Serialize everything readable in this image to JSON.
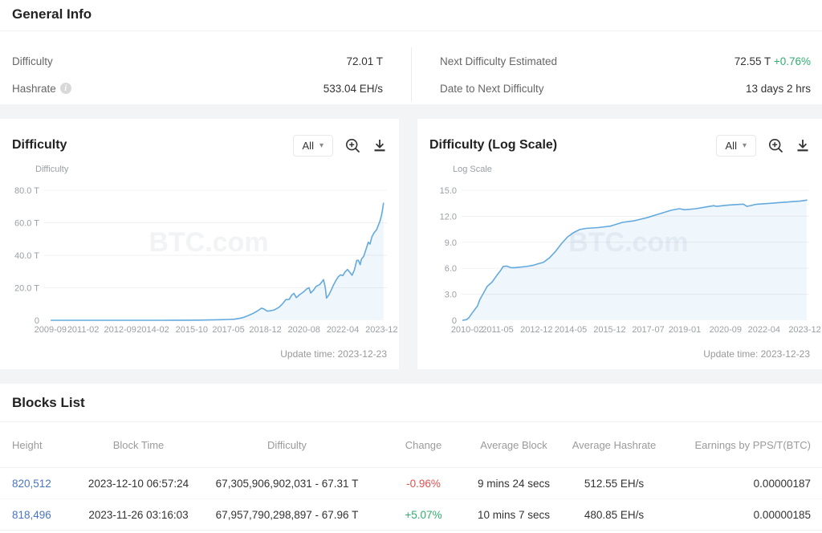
{
  "general_info": {
    "title": "General Info",
    "left_rows": [
      {
        "label": "Difficulty",
        "value": "72.01 T"
      },
      {
        "label": "Hashrate",
        "value": "533.04 EH/s",
        "has_info_icon": true
      }
    ],
    "right_rows": [
      {
        "label": "Next Difficulty Estimated",
        "value": "72.55 T",
        "change": "+0.76%"
      },
      {
        "label": "Date to Next Difficulty",
        "value": "13 days 2 hrs"
      }
    ]
  },
  "colors": {
    "accent_line": "#64aadd",
    "accent_fill": "rgba(100,170,221,0.10)",
    "positive": "#2fae6e",
    "negative": "#e25050",
    "link": "#4a74c4"
  },
  "chart_data": [
    {
      "type": "area",
      "title": "Difficulty",
      "ylabel": "Difficulty",
      "range_selected": "All",
      "update_time": "Update time: 2023-12-23",
      "watermark": "BTC.com",
      "legend": "none",
      "grid": "horizontal",
      "xlim": [
        2009.4,
        2024.15
      ],
      "ylim": [
        0,
        80
      ],
      "y_ticks": [
        {
          "v": 0,
          "label": "0"
        },
        {
          "v": 20,
          "label": "20.0 T"
        },
        {
          "v": 40,
          "label": "40.0 T"
        },
        {
          "v": 60,
          "label": "60.0 T"
        },
        {
          "v": 80,
          "label": "80.0 T"
        }
      ],
      "x_ticks": [
        {
          "v": 2009.67,
          "label": "2009-09"
        },
        {
          "v": 2011.08,
          "label": "2011-02"
        },
        {
          "v": 2012.67,
          "label": "2012-09"
        },
        {
          "v": 2014.08,
          "label": "2014-02"
        },
        {
          "v": 2015.75,
          "label": "2015-10"
        },
        {
          "v": 2017.33,
          "label": "2017-05"
        },
        {
          "v": 2018.92,
          "label": "2018-12"
        },
        {
          "v": 2020.58,
          "label": "2020-08"
        },
        {
          "v": 2022.25,
          "label": "2022-04"
        },
        {
          "v": 2023.92,
          "label": "2023-12"
        }
      ],
      "series": [
        {
          "name": "Difficulty (T)",
          "points": [
            [
              2009.7,
              1e-06
            ],
            [
              2011.0,
              2e-06
            ],
            [
              2012.5,
              3e-06
            ],
            [
              2013.0,
              1e-05
            ],
            [
              2013.5,
              2e-05
            ],
            [
              2014.0,
              0.0013
            ],
            [
              2014.5,
              0.008
            ],
            [
              2015.0,
              0.044
            ],
            [
              2015.5,
              0.048
            ],
            [
              2016.0,
              0.104
            ],
            [
              2016.5,
              0.199
            ],
            [
              2017.0,
              0.336
            ],
            [
              2017.3,
              0.5
            ],
            [
              2017.6,
              0.71
            ],
            [
              2017.9,
              1.45
            ],
            [
              2018.0,
              1.93
            ],
            [
              2018.2,
              3.01
            ],
            [
              2018.4,
              4.31
            ],
            [
              2018.6,
              5.95
            ],
            [
              2018.75,
              7.45
            ],
            [
              2018.85,
              7.0
            ],
            [
              2019.0,
              5.62
            ],
            [
              2019.1,
              5.8
            ],
            [
              2019.3,
              6.39
            ],
            [
              2019.5,
              7.93
            ],
            [
              2019.65,
              9.99
            ],
            [
              2019.8,
              12.76
            ],
            [
              2019.95,
              12.88
            ],
            [
              2020.05,
              15.47
            ],
            [
              2020.15,
              16.55
            ],
            [
              2020.25,
              13.91
            ],
            [
              2020.4,
              15.78
            ],
            [
              2020.55,
              17.35
            ],
            [
              2020.7,
              19.31
            ],
            [
              2020.8,
              19.99
            ],
            [
              2020.87,
              16.79
            ],
            [
              2021.0,
              18.67
            ],
            [
              2021.1,
              20.82
            ],
            [
              2021.25,
              21.87
            ],
            [
              2021.35,
              23.58
            ],
            [
              2021.42,
              25.05
            ],
            [
              2021.5,
              19.93
            ],
            [
              2021.55,
              13.67
            ],
            [
              2021.65,
              15.56
            ],
            [
              2021.75,
              18.42
            ],
            [
              2021.85,
              21.66
            ],
            [
              2021.95,
              24.37
            ],
            [
              2022.05,
              26.64
            ],
            [
              2022.15,
              27.97
            ],
            [
              2022.25,
              27.45
            ],
            [
              2022.35,
              29.79
            ],
            [
              2022.45,
              31.25
            ],
            [
              2022.55,
              29.57
            ],
            [
              2022.65,
              27.69
            ],
            [
              2022.75,
              30.98
            ],
            [
              2022.85,
              36.84
            ],
            [
              2022.92,
              36.95
            ],
            [
              2023.0,
              34.24
            ],
            [
              2023.05,
              37.59
            ],
            [
              2023.15,
              39.35
            ],
            [
              2023.25,
              43.55
            ],
            [
              2023.35,
              48.01
            ],
            [
              2023.42,
              46.84
            ],
            [
              2023.5,
              51.23
            ],
            [
              2023.6,
              53.91
            ],
            [
              2023.7,
              55.62
            ],
            [
              2023.75,
              57.32
            ],
            [
              2023.85,
              61.03
            ],
            [
              2023.92,
              64.68
            ],
            [
              2023.96,
              67.96
            ],
            [
              2024.0,
              72.01
            ]
          ]
        }
      ]
    },
    {
      "type": "area",
      "title": "Difficulty (Log Scale)",
      "ylabel": "Log Scale",
      "range_selected": "All",
      "update_time": "Update time: 2023-12-23",
      "watermark": "BTC.com",
      "legend": "none",
      "grid": "horizontal",
      "xlim": [
        2009.85,
        2024.1
      ],
      "ylim": [
        0,
        15
      ],
      "y_ticks": [
        {
          "v": 0,
          "label": "0"
        },
        {
          "v": 3,
          "label": "3.0"
        },
        {
          "v": 6,
          "label": "6.0"
        },
        {
          "v": 9,
          "label": "9.0"
        },
        {
          "v": 12,
          "label": "12.0"
        },
        {
          "v": 15,
          "label": "15.0"
        }
      ],
      "x_ticks": [
        {
          "v": 2010.08,
          "label": "2010-02"
        },
        {
          "v": 2011.33,
          "label": "2011-05"
        },
        {
          "v": 2012.92,
          "label": "2012-12"
        },
        {
          "v": 2014.33,
          "label": "2014-05"
        },
        {
          "v": 2015.92,
          "label": "2015-12"
        },
        {
          "v": 2017.5,
          "label": "2017-07"
        },
        {
          "v": 2019.0,
          "label": "2019-01"
        },
        {
          "v": 2020.67,
          "label": "2020-09"
        },
        {
          "v": 2022.25,
          "label": "2022-04"
        },
        {
          "v": 2023.92,
          "label": "2023-12"
        }
      ],
      "series": [
        {
          "name": "Log10(Difficulty)",
          "points": [
            [
              2009.9,
              0
            ],
            [
              2010.05,
              0.07
            ],
            [
              2010.15,
              0.3
            ],
            [
              2010.3,
              0.9
            ],
            [
              2010.5,
              1.66
            ],
            [
              2010.6,
              2.39
            ],
            [
              2010.75,
              3.14
            ],
            [
              2010.9,
              3.91
            ],
            [
              2011.1,
              4.41
            ],
            [
              2011.3,
              5.2
            ],
            [
              2011.45,
              5.74
            ],
            [
              2011.55,
              6.19
            ],
            [
              2011.7,
              6.26
            ],
            [
              2011.85,
              6.08
            ],
            [
              2012.0,
              6.06
            ],
            [
              2012.2,
              6.12
            ],
            [
              2012.5,
              6.2
            ],
            [
              2012.8,
              6.35
            ],
            [
              2013.0,
              6.53
            ],
            [
              2013.2,
              6.68
            ],
            [
              2013.45,
              7.19
            ],
            [
              2013.7,
              7.94
            ],
            [
              2013.95,
              8.85
            ],
            [
              2014.2,
              9.63
            ],
            [
              2014.45,
              10.13
            ],
            [
              2014.7,
              10.47
            ],
            [
              2014.95,
              10.6
            ],
            [
              2015.45,
              10.69
            ],
            [
              2015.95,
              10.86
            ],
            [
              2016.45,
              11.3
            ],
            [
              2016.95,
              11.49
            ],
            [
              2017.45,
              11.83
            ],
            [
              2017.95,
              12.27
            ],
            [
              2018.45,
              12.69
            ],
            [
              2018.78,
              12.87
            ],
            [
              2019.0,
              12.75
            ],
            [
              2019.45,
              12.87
            ],
            [
              2019.95,
              13.11
            ],
            [
              2020.2,
              13.22
            ],
            [
              2020.3,
              13.14
            ],
            [
              2020.8,
              13.3
            ],
            [
              2021.4,
              13.4
            ],
            [
              2021.55,
              13.14
            ],
            [
              2021.95,
              13.39
            ],
            [
              2022.45,
              13.48
            ],
            [
              2022.85,
              13.57
            ],
            [
              2023.2,
              13.64
            ],
            [
              2023.5,
              13.71
            ],
            [
              2023.75,
              13.76
            ],
            [
              2024.0,
              13.86
            ]
          ]
        }
      ]
    }
  ],
  "blocks_list": {
    "title": "Blocks List",
    "columns": [
      "Height",
      "Block Time",
      "Difficulty",
      "Change",
      "Average Block",
      "Average Hashrate",
      "Earnings by PPS/T(BTC)"
    ],
    "rows": [
      {
        "height": "820,512",
        "block_time": "2023-12-10 06:57:24",
        "difficulty": "67,305,906,902,031 - 67.31 T",
        "change": "-0.96%",
        "average_block": "9 mins 24 secs",
        "average_hashrate": "512.55 EH/s",
        "earnings": "0.00000187"
      },
      {
        "height": "818,496",
        "block_time": "2023-11-26 03:16:03",
        "difficulty": "67,957,790,298,897 - 67.96 T",
        "change": "+5.07%",
        "average_block": "10 mins 7 secs",
        "average_hashrate": "480.85 EH/s",
        "earnings": "0.00000185"
      }
    ]
  }
}
